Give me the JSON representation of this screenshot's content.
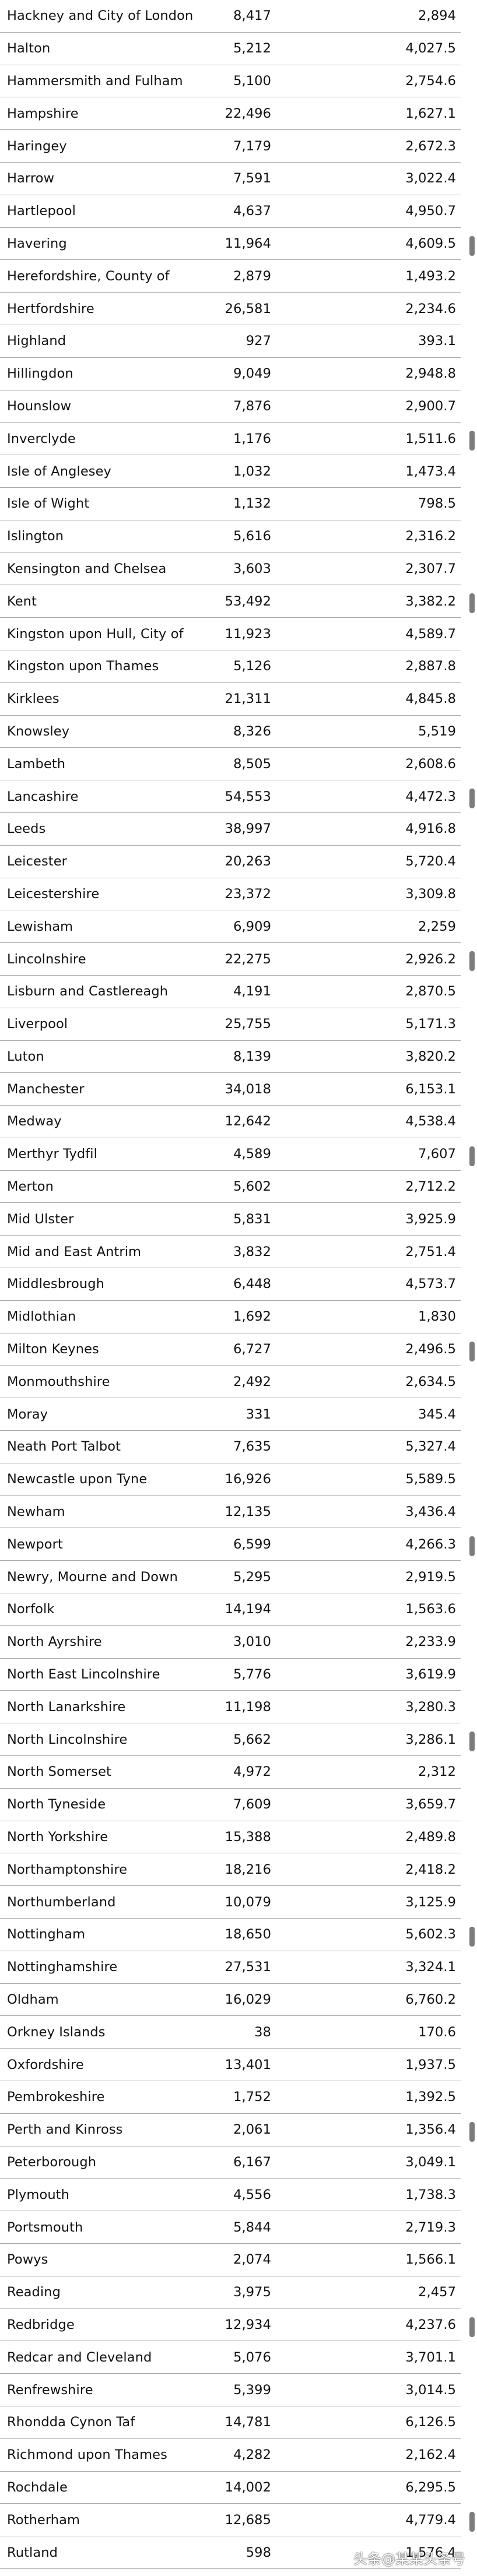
{
  "rows": [
    {
      "name": "Hackney and City of London",
      "count": "8,417",
      "rate": "2,894"
    },
    {
      "name": "Halton",
      "count": "5,212",
      "rate": "4,027.5"
    },
    {
      "name": "Hammersmith and Fulham",
      "count": "5,100",
      "rate": "2,754.6"
    },
    {
      "name": "Hampshire",
      "count": "22,496",
      "rate": "1,627.1"
    },
    {
      "name": "Haringey",
      "count": "7,179",
      "rate": "2,672.3"
    },
    {
      "name": "Harrow",
      "count": "7,591",
      "rate": "3,022.4"
    },
    {
      "name": "Hartlepool",
      "count": "4,637",
      "rate": "4,950.7"
    },
    {
      "name": "Havering",
      "count": "11,964",
      "rate": "4,609.5",
      "marker": true
    },
    {
      "name": "Herefordshire, County of",
      "count": "2,879",
      "rate": "1,493.2"
    },
    {
      "name": "Hertfordshire",
      "count": "26,581",
      "rate": "2,234.6"
    },
    {
      "name": "Highland",
      "count": "927",
      "rate": "393.1"
    },
    {
      "name": "Hillingdon",
      "count": "9,049",
      "rate": "2,948.8"
    },
    {
      "name": "Hounslow",
      "count": "7,876",
      "rate": "2,900.7"
    },
    {
      "name": "Inverclyde",
      "count": "1,176",
      "rate": "1,511.6",
      "marker": true
    },
    {
      "name": "Isle of Anglesey",
      "count": "1,032",
      "rate": "1,473.4"
    },
    {
      "name": "Isle of Wight",
      "count": "1,132",
      "rate": "798.5"
    },
    {
      "name": "Islington",
      "count": "5,616",
      "rate": "2,316.2"
    },
    {
      "name": "Kensington and Chelsea",
      "count": "3,603",
      "rate": "2,307.7"
    },
    {
      "name": "Kent",
      "count": "53,492",
      "rate": "3,382.2",
      "marker": true
    },
    {
      "name": "Kingston upon Hull, City of",
      "count": "11,923",
      "rate": "4,589.7"
    },
    {
      "name": "Kingston upon Thames",
      "count": "5,126",
      "rate": "2,887.8"
    },
    {
      "name": "Kirklees",
      "count": "21,311",
      "rate": "4,845.8"
    },
    {
      "name": "Knowsley",
      "count": "8,326",
      "rate": "5,519"
    },
    {
      "name": "Lambeth",
      "count": "8,505",
      "rate": "2,608.6"
    },
    {
      "name": "Lancashire",
      "count": "54,553",
      "rate": "4,472.3",
      "marker": true
    },
    {
      "name": "Leeds",
      "count": "38,997",
      "rate": "4,916.8"
    },
    {
      "name": "Leicester",
      "count": "20,263",
      "rate": "5,720.4"
    },
    {
      "name": "Leicestershire",
      "count": "23,372",
      "rate": "3,309.8"
    },
    {
      "name": "Lewisham",
      "count": "6,909",
      "rate": "2,259"
    },
    {
      "name": "Lincolnshire",
      "count": "22,275",
      "rate": "2,926.2",
      "marker": true
    },
    {
      "name": "Lisburn and Castlereagh",
      "count": "4,191",
      "rate": "2,870.5"
    },
    {
      "name": "Liverpool",
      "count": "25,755",
      "rate": "5,171.3"
    },
    {
      "name": "Luton",
      "count": "8,139",
      "rate": "3,820.2"
    },
    {
      "name": "Manchester",
      "count": "34,018",
      "rate": "6,153.1"
    },
    {
      "name": "Medway",
      "count": "12,642",
      "rate": "4,538.4"
    },
    {
      "name": "Merthyr Tydfil",
      "count": "4,589",
      "rate": "7,607",
      "marker": true
    },
    {
      "name": "Merton",
      "count": "5,602",
      "rate": "2,712.2"
    },
    {
      "name": "Mid Ulster",
      "count": "5,831",
      "rate": "3,925.9"
    },
    {
      "name": "Mid and East Antrim",
      "count": "3,832",
      "rate": "2,751.4"
    },
    {
      "name": "Middlesbrough",
      "count": "6,448",
      "rate": "4,573.7"
    },
    {
      "name": "Midlothian",
      "count": "1,692",
      "rate": "1,830"
    },
    {
      "name": "Milton Keynes",
      "count": "6,727",
      "rate": "2,496.5",
      "marker": true
    },
    {
      "name": "Monmouthshire",
      "count": "2,492",
      "rate": "2,634.5"
    },
    {
      "name": "Moray",
      "count": "331",
      "rate": "345.4"
    },
    {
      "name": "Neath Port Talbot",
      "count": "7,635",
      "rate": "5,327.4"
    },
    {
      "name": "Newcastle upon Tyne",
      "count": "16,926",
      "rate": "5,589.5"
    },
    {
      "name": "Newham",
      "count": "12,135",
      "rate": "3,436.4"
    },
    {
      "name": "Newport",
      "count": "6,599",
      "rate": "4,266.3",
      "marker": true
    },
    {
      "name": "Newry, Mourne and Down",
      "count": "5,295",
      "rate": "2,919.5"
    },
    {
      "name": "Norfolk",
      "count": "14,194",
      "rate": "1,563.6"
    },
    {
      "name": "North Ayrshire",
      "count": "3,010",
      "rate": "2,233.9"
    },
    {
      "name": "North East Lincolnshire",
      "count": "5,776",
      "rate": "3,619.9"
    },
    {
      "name": "North Lanarkshire",
      "count": "11,198",
      "rate": "3,280.3"
    },
    {
      "name": "North Lincolnshire",
      "count": "5,662",
      "rate": "3,286.1",
      "marker": true
    },
    {
      "name": "North Somerset",
      "count": "4,972",
      "rate": "2,312"
    },
    {
      "name": "North Tyneside",
      "count": "7,609",
      "rate": "3,659.7"
    },
    {
      "name": "North Yorkshire",
      "count": "15,388",
      "rate": "2,489.8"
    },
    {
      "name": "Northamptonshire",
      "count": "18,216",
      "rate": "2,418.2"
    },
    {
      "name": "Northumberland",
      "count": "10,079",
      "rate": "3,125.9"
    },
    {
      "name": "Nottingham",
      "count": "18,650",
      "rate": "5,602.3",
      "marker": true
    },
    {
      "name": "Nottinghamshire",
      "count": "27,531",
      "rate": "3,324.1"
    },
    {
      "name": "Oldham",
      "count": "16,029",
      "rate": "6,760.2"
    },
    {
      "name": "Orkney Islands",
      "count": "38",
      "rate": "170.6"
    },
    {
      "name": "Oxfordshire",
      "count": "13,401",
      "rate": "1,937.5"
    },
    {
      "name": "Pembrokeshire",
      "count": "1,752",
      "rate": "1,392.5"
    },
    {
      "name": "Perth and Kinross",
      "count": "2,061",
      "rate": "1,356.4",
      "marker": true
    },
    {
      "name": "Peterborough",
      "count": "6,167",
      "rate": "3,049.1"
    },
    {
      "name": "Plymouth",
      "count": "4,556",
      "rate": "1,738.3"
    },
    {
      "name": "Portsmouth",
      "count": "5,844",
      "rate": "2,719.3"
    },
    {
      "name": "Powys",
      "count": "2,074",
      "rate": "1,566.1"
    },
    {
      "name": "Reading",
      "count": "3,975",
      "rate": "2,457"
    },
    {
      "name": "Redbridge",
      "count": "12,934",
      "rate": "4,237.6",
      "marker": true
    },
    {
      "name": "Redcar and Cleveland",
      "count": "5,076",
      "rate": "3,701.1"
    },
    {
      "name": "Renfrewshire",
      "count": "5,399",
      "rate": "3,014.5"
    },
    {
      "name": "Rhondda Cynon Taf",
      "count": "14,781",
      "rate": "6,126.5"
    },
    {
      "name": "Richmond upon Thames",
      "count": "4,282",
      "rate": "2,162.4"
    },
    {
      "name": "Rochdale",
      "count": "14,002",
      "rate": "6,295.5"
    },
    {
      "name": "Rotherham",
      "count": "12,685",
      "rate": "4,779.4",
      "marker": true
    },
    {
      "name": "Rutland",
      "count": "598",
      "rate": "1,576.4"
    }
  ],
  "watermark": "头条@某某头条号"
}
